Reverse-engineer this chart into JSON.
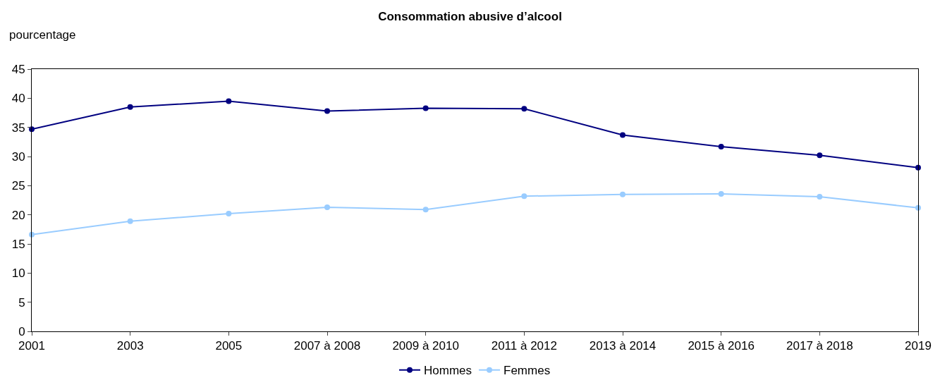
{
  "chart_data": {
    "type": "line",
    "title": "Consommation abusive d’alcool",
    "ylabel": "pourcentage",
    "categories": [
      "2001",
      "2003",
      "2005",
      "2007 à 2008",
      "2009 à 2010",
      "2011 à 2012",
      "2013 à 2014",
      "2015 à 2016",
      "2017 à 2018",
      "2019"
    ],
    "series": [
      {
        "name": "Hommes",
        "color": "#000080",
        "values": [
          34.7,
          38.5,
          39.5,
          37.8,
          38.3,
          38.2,
          33.7,
          31.7,
          30.2,
          28.1
        ]
      },
      {
        "name": "Femmes",
        "color": "#99ccff",
        "values": [
          16.6,
          18.9,
          20.2,
          21.3,
          20.9,
          23.2,
          23.5,
          23.6,
          23.1,
          21.2
        ]
      }
    ],
    "ylim": [
      0,
      45
    ],
    "yticks": [
      0,
      5,
      10,
      15,
      20,
      25,
      30,
      35,
      40,
      45
    ],
    "grid": false,
    "legend": "bottom",
    "marker": "circle",
    "line_style": "solid"
  }
}
